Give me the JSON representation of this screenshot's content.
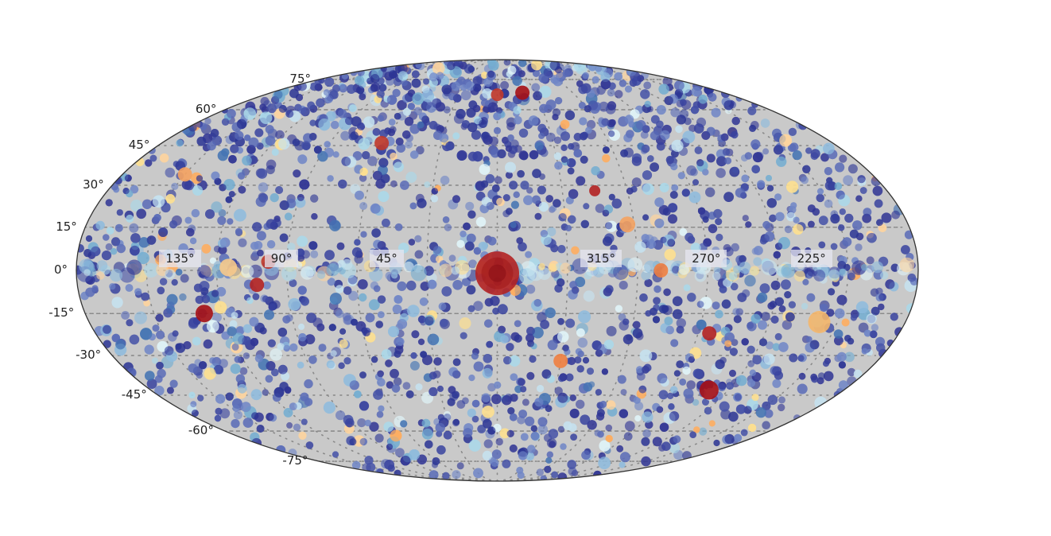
{
  "chart_data": {
    "type": "scatter",
    "projection": "mollweide",
    "title": "",
    "xlabel": "",
    "ylabel": "",
    "grid": true,
    "grid_style": "dotted",
    "background_color": "#c8c8c8",
    "colormap": "RdYlBu_r",
    "lat_ticks": [
      "75°",
      "60°",
      "45°",
      "30°",
      "15°",
      "0°",
      "-15°",
      "-30°",
      "-45°",
      "-60°",
      "-75°"
    ],
    "lat_values": [
      75,
      60,
      45,
      30,
      15,
      0,
      -15,
      -30,
      -45,
      -60,
      -75
    ],
    "lon_ticks": [
      "135",
      "90",
      "45",
      "315",
      "270",
      "225"
    ],
    "lon_values": [
      135,
      90,
      45,
      315,
      270,
      225
    ],
    "lon_range": [
      360,
      0
    ],
    "lat_range": [
      -90,
      90
    ],
    "point_count_approx": 4000,
    "notable_points": [
      {
        "lon": 0,
        "lat": -1,
        "size": 55,
        "color": "#b22222",
        "note": "largest red source at center"
      },
      {
        "lon": 98,
        "lat": 3,
        "size": 18,
        "color": "#c0392b"
      },
      {
        "lon": 103,
        "lat": -5,
        "size": 18,
        "color": "#b22222"
      },
      {
        "lon": 128,
        "lat": -15,
        "size": 22,
        "color": "#a50f15"
      },
      {
        "lon": 62,
        "lat": 46,
        "size": 18,
        "color": "#c0392b"
      },
      {
        "lon": 0,
        "lat": 67,
        "size": 16,
        "color": "#c0392b"
      },
      {
        "lon": 340,
        "lat": 68,
        "size": 18,
        "color": "#a50f15"
      },
      {
        "lon": 315,
        "lat": 28,
        "size": 14,
        "color": "#b22222"
      },
      {
        "lon": 303,
        "lat": 16,
        "size": 20,
        "color": "#f4a261"
      },
      {
        "lon": 290,
        "lat": 0,
        "size": 18,
        "color": "#f08040"
      },
      {
        "lon": 265,
        "lat": -22,
        "size": 18,
        "color": "#b22222"
      },
      {
        "lon": 250,
        "lat": -43,
        "size": 24,
        "color": "#a50f15"
      },
      {
        "lon": 218,
        "lat": -18,
        "size": 28,
        "color": "#f4b66a"
      },
      {
        "lon": 330,
        "lat": -32,
        "size": 18,
        "color": "#f08040"
      },
      {
        "lon": 150,
        "lat": 34,
        "size": 18,
        "color": "#f4a261"
      },
      {
        "lon": 115,
        "lat": 1,
        "size": 22,
        "color": "#f7c98b"
      }
    ]
  }
}
